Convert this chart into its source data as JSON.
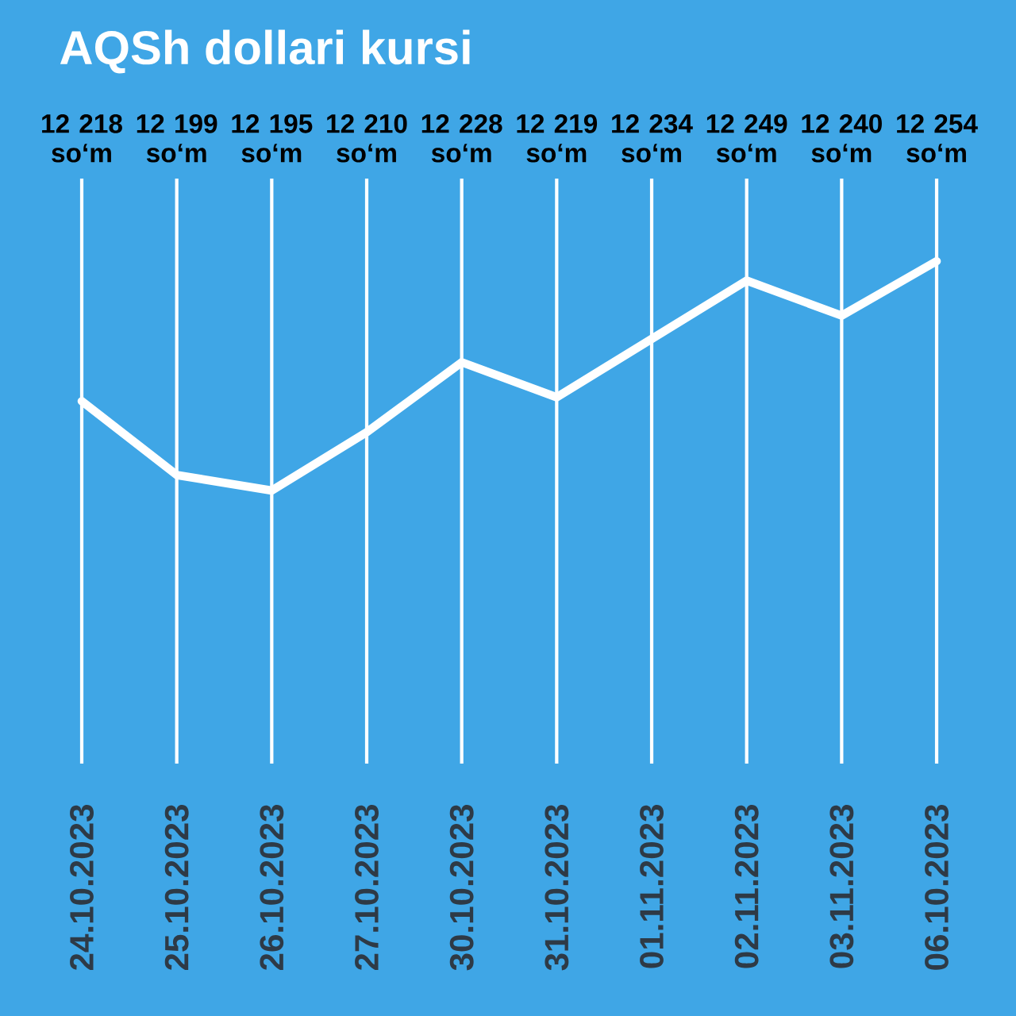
{
  "chart_data": {
    "type": "line",
    "title": "AQSh dollari kursi",
    "categories": [
      "24.10.2023",
      "25.10.2023",
      "26.10.2023",
      "27.10.2023",
      "30.10.2023",
      "31.10.2023",
      "01.11.2023",
      "02.11.2023",
      "03.11.2023",
      "06.10.2023"
    ],
    "values": [
      12218,
      12199,
      12195,
      12210,
      12228,
      12219,
      12234,
      12249,
      12240,
      12254
    ],
    "value_labels": [
      "12 218 so‘m",
      "12 199 so‘m",
      "12 195 so‘m",
      "12 210 so‘m",
      "12 228 so‘m",
      "12 219 so‘m",
      "12 234 so‘m",
      "12 249 so‘m",
      "12 240 so‘m",
      "12 254 so‘m"
    ],
    "color": "#ffffff",
    "grid": "x",
    "line_style": "solid"
  }
}
